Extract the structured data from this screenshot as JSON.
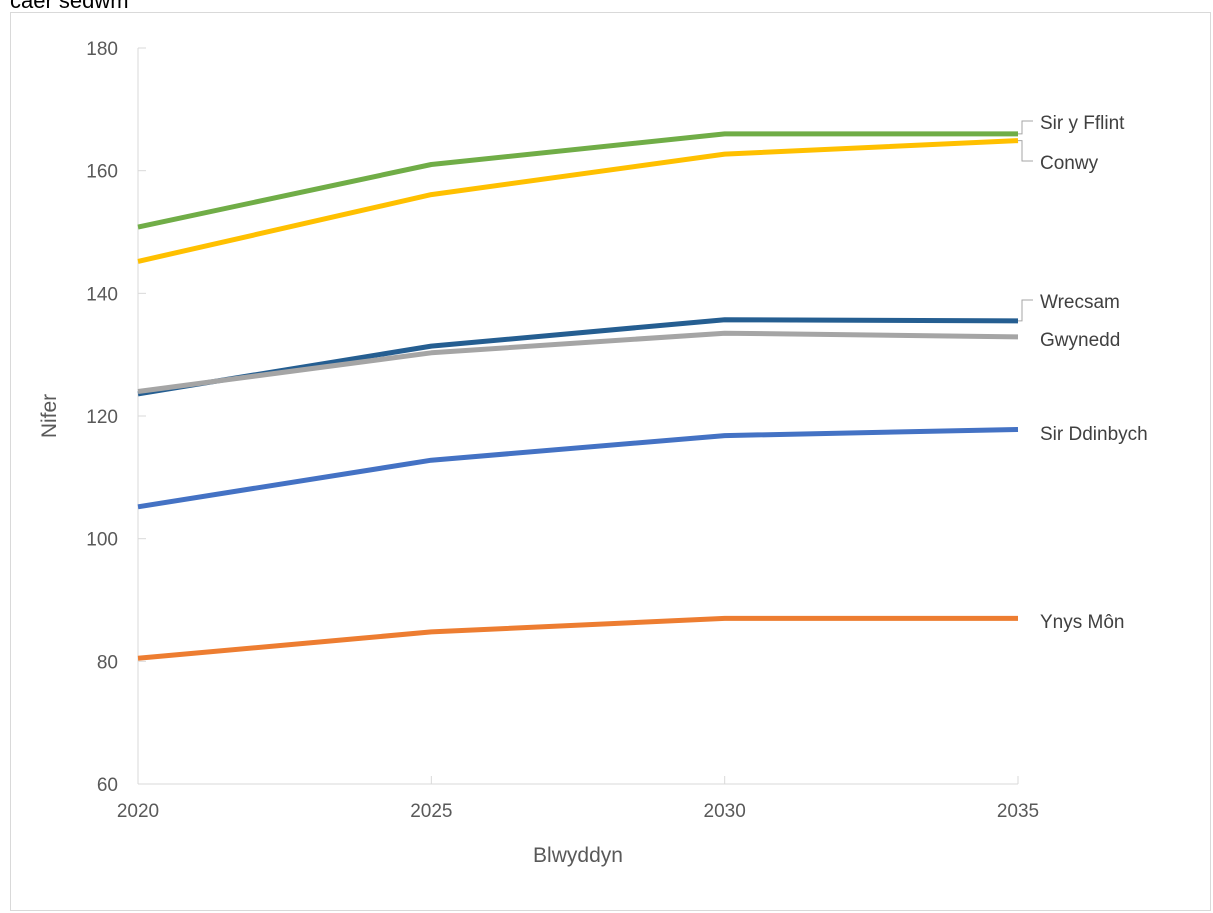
{
  "chart_data": {
    "type": "line",
    "title": "caer sedwm",
    "xlabel": "Blwyddyn",
    "ylabel": "Nifer",
    "x": [
      2020,
      2025,
      2030,
      2035
    ],
    "ylim": [
      60,
      180
    ],
    "yticks": [
      60,
      80,
      100,
      120,
      140,
      160,
      180
    ],
    "grid": false,
    "legend": "direct labels at line ends (right)",
    "series": [
      {
        "name": "Sir y Fflint",
        "color": "#70AD47",
        "values": [
          150.8,
          161.0,
          166.0,
          166.0
        ]
      },
      {
        "name": "Conwy",
        "color": "#FFC000",
        "values": [
          145.2,
          156.1,
          162.7,
          164.9
        ]
      },
      {
        "name": "Wrecsam",
        "color": "#255E91",
        "values": [
          123.6,
          131.4,
          135.7,
          135.5
        ]
      },
      {
        "name": "Gwynedd",
        "color": "#A5A5A5",
        "values": [
          124.0,
          130.3,
          133.5,
          132.9
        ]
      },
      {
        "name": "Sir Ddinbych",
        "color": "#4472C4",
        "values": [
          105.2,
          112.8,
          116.8,
          117.8
        ]
      },
      {
        "name": "Ynys Môn",
        "color": "#ED7D31",
        "values": [
          80.5,
          84.8,
          87.0,
          87.0
        ]
      }
    ]
  }
}
